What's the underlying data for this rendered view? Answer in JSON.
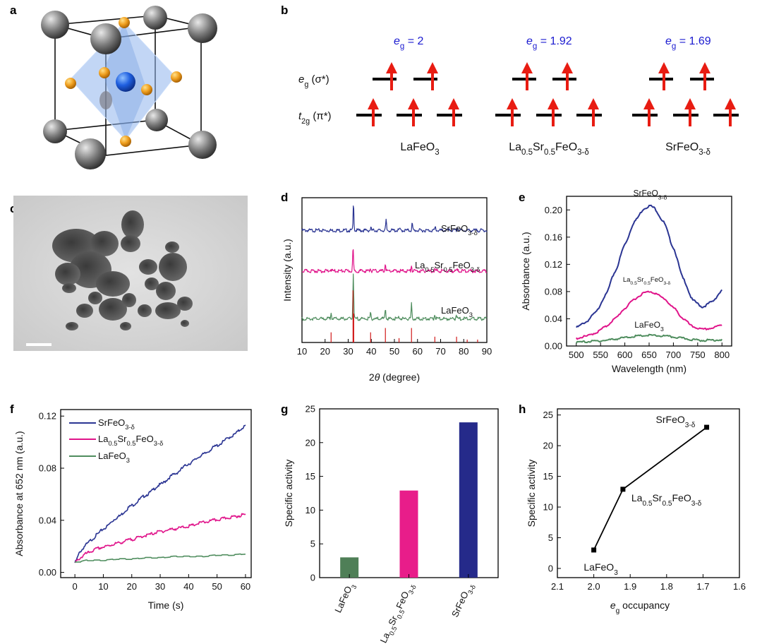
{
  "colors": {
    "srfeo3": "#2b3593",
    "lasrfeo3": "#e0148a",
    "lafeo3": "#4f8d5e",
    "arrow": "#e81c12",
    "eg_label": "#1a1ad0",
    "xrd_ref": "#d11a1a",
    "bar_lafeo3": "#4f7f57",
    "bar_lasrfeo3": "#e81d8a",
    "bar_srfeo3": "#252a8a"
  },
  "panel_labels": {
    "a": "a",
    "b": "b",
    "c": "c",
    "d": "d",
    "e": "e",
    "f": "f",
    "g": "g",
    "h": "h"
  },
  "panel_a": {
    "description_icon": "perovskite-unit-cell-icon"
  },
  "panel_b": {
    "eg_row_label": "e",
    "eg_row_sub": "g",
    "eg_row_tail": " (σ*)",
    "t2g_row_label": "t",
    "t2g_row_sub": "2g",
    "t2g_row_tail": " (π*)",
    "columns": [
      {
        "eg_e": "e",
        "eg_sub": "g",
        "eg_value": " = 2",
        "compound_parts": [
          [
            "LaFeO",
            "n"
          ],
          [
            "3",
            "sub"
          ]
        ]
      },
      {
        "eg_e": "e",
        "eg_sub": "g",
        "eg_value": " = 1.92",
        "compound_parts": [
          [
            "La",
            "n"
          ],
          [
            "0.5",
            "sub"
          ],
          [
            "Sr",
            "n"
          ],
          [
            "0.5",
            "sub"
          ],
          [
            "FeO",
            "n"
          ],
          [
            "3-δ",
            "sub"
          ]
        ]
      },
      {
        "eg_e": "e",
        "eg_sub": "g",
        "eg_value": " = 1.69",
        "compound_parts": [
          [
            "SrFeO",
            "n"
          ],
          [
            "3-δ",
            "sub"
          ]
        ]
      }
    ]
  },
  "panel_c": {
    "scale_bar_icon": "scale-bar-icon"
  },
  "chart_data": [
    {
      "panel": "d",
      "type": "line",
      "xlabel_prefix": "2",
      "xlabel_theta": "θ",
      "xlabel_suffix": " (degree)",
      "ylabel": "Intensity (a.u.)",
      "xlim": [
        10,
        90
      ],
      "xticks": [
        "10",
        "20",
        "30",
        "40",
        "50",
        "60",
        "70",
        "80",
        "90"
      ],
      "series": [
        {
          "name_parts": [
            [
              "SrFeO",
              "n"
            ],
            [
              "3-δ",
              "sub"
            ]
          ],
          "baseline": 0.78,
          "peaks": [
            [
              32.3,
              0.19
            ],
            [
              39.8,
              0.018
            ],
            [
              46.4,
              0.07
            ],
            [
              52.2,
              0.012
            ],
            [
              57.7,
              0.05
            ],
            [
              67.7,
              0.025
            ],
            [
              77.3,
              0.018
            ]
          ]
        },
        {
          "name_parts": [
            [
              "La",
              "n"
            ],
            [
              "0.5",
              "sub"
            ],
            [
              "Sr",
              "n"
            ],
            [
              "0.5",
              "sub"
            ],
            [
              "FeO",
              "n"
            ],
            [
              "3-δ",
              "sub"
            ]
          ],
          "baseline": 0.5,
          "peaks": [
            [
              22.4,
              0.015
            ],
            [
              32.1,
              0.16
            ],
            [
              39.6,
              0.02
            ],
            [
              46.1,
              0.05
            ],
            [
              57.4,
              0.04
            ],
            [
              67.5,
              0.015
            ],
            [
              77.0,
              0.01
            ]
          ]
        },
        {
          "name_parts": [
            [
              "LaFeO",
              "n"
            ],
            [
              "3",
              "sub"
            ]
          ],
          "baseline": 0.17,
          "peaks": [
            [
              22.6,
              0.05
            ],
            [
              32.2,
              0.31
            ],
            [
              39.7,
              0.04
            ],
            [
              46.1,
              0.08
            ],
            [
              52.0,
              0.02
            ],
            [
              57.4,
              0.1
            ],
            [
              67.4,
              0.035
            ],
            [
              76.8,
              0.03
            ]
          ]
        }
      ],
      "reference_peaks": [
        [
          22.6,
          0.07
        ],
        [
          32.1,
          0.36
        ],
        [
          32.4,
          0.2
        ],
        [
          39.7,
          0.07
        ],
        [
          46.1,
          0.1
        ],
        [
          52.0,
          0.03
        ],
        [
          57.4,
          0.1
        ],
        [
          67.5,
          0.04
        ],
        [
          76.9,
          0.04
        ],
        [
          81.5,
          0.02
        ],
        [
          86.0,
          0.02
        ]
      ]
    },
    {
      "panel": "e",
      "type": "line",
      "xlabel": "Wavelength (nm)",
      "ylabel": "Absorbance (a.u.)",
      "xlim": [
        480,
        820
      ],
      "ylim": [
        0,
        0.22
      ],
      "xticks": [
        "500",
        "550",
        "600",
        "650",
        "700",
        "750",
        "800"
      ],
      "yticks": [
        "0.00",
        "0.04",
        "0.08",
        "0.12",
        "0.16",
        "0.20"
      ],
      "x": [
        500,
        520,
        540,
        560,
        580,
        600,
        620,
        640,
        652,
        660,
        680,
        700,
        720,
        740,
        760,
        780,
        800
      ],
      "series": [
        {
          "name_parts": [
            [
              "SrFeO",
              "n"
            ],
            [
              "3-δ",
              "sub"
            ]
          ],
          "values": [
            0.028,
            0.036,
            0.05,
            0.075,
            0.11,
            0.15,
            0.184,
            0.203,
            0.207,
            0.204,
            0.183,
            0.145,
            0.1,
            0.068,
            0.058,
            0.066,
            0.082
          ]
        },
        {
          "name_parts": [
            [
              "La",
              "n"
            ],
            [
              "0.5",
              "sub"
            ],
            [
              "Sr",
              "n"
            ],
            [
              "0.5",
              "sub"
            ],
            [
              "FeO",
              "n"
            ],
            [
              "3-δ",
              "sub"
            ]
          ],
          "values": [
            0.012,
            0.015,
            0.02,
            0.029,
            0.041,
            0.056,
            0.07,
            0.079,
            0.081,
            0.079,
            0.071,
            0.057,
            0.041,
            0.029,
            0.025,
            0.027,
            0.032
          ]
        },
        {
          "name_parts": [
            [
              "LaFeO",
              "n"
            ],
            [
              "3",
              "sub"
            ]
          ],
          "values": [
            0.006,
            0.007,
            0.008,
            0.009,
            0.011,
            0.013,
            0.015,
            0.016,
            0.0165,
            0.016,
            0.0155,
            0.014,
            0.012,
            0.01,
            0.009,
            0.0095,
            0.01
          ]
        }
      ]
    },
    {
      "panel": "f",
      "type": "line",
      "xlabel": "Time (s)",
      "ylabel": "Absorbance at 652 nm (a.u.)",
      "xlim": [
        -5,
        62
      ],
      "ylim": [
        -0.004,
        0.125
      ],
      "xticks": [
        "0",
        "10",
        "20",
        "30",
        "40",
        "50",
        "60"
      ],
      "yticks": [
        "0.00",
        "0.04",
        "0.08",
        "0.12"
      ],
      "legend": "top-left",
      "x": [
        0,
        2,
        4,
        6,
        8,
        10,
        15,
        20,
        25,
        30,
        35,
        40,
        45,
        50,
        55,
        60
      ],
      "series": [
        {
          "name_parts": [
            [
              "SrFeO",
              "n"
            ],
            [
              "3-δ",
              "sub"
            ]
          ],
          "values": [
            0.008,
            0.017,
            0.022,
            0.026,
            0.03,
            0.034,
            0.043,
            0.052,
            0.06,
            0.068,
            0.076,
            0.084,
            0.091,
            0.098,
            0.105,
            0.113
          ]
        },
        {
          "name_parts": [
            [
              "La",
              "n"
            ],
            [
              "0.5",
              "sub"
            ],
            [
              "Sr",
              "n"
            ],
            [
              "0.5",
              "sub"
            ],
            [
              "FeO",
              "n"
            ],
            [
              "3-δ",
              "sub"
            ]
          ],
          "values": [
            0.008,
            0.012,
            0.015,
            0.017,
            0.019,
            0.02,
            0.023,
            0.026,
            0.029,
            0.032,
            0.034,
            0.036,
            0.039,
            0.041,
            0.043,
            0.045
          ]
        },
        {
          "name_parts": [
            [
              "LaFeO",
              "n"
            ],
            [
              "3",
              "sub"
            ]
          ],
          "values": [
            0.008,
            0.008,
            0.009,
            0.009,
            0.009,
            0.009,
            0.01,
            0.01,
            0.011,
            0.011,
            0.012,
            0.012,
            0.012,
            0.013,
            0.013,
            0.014
          ]
        }
      ]
    },
    {
      "panel": "g",
      "type": "bar",
      "ylabel": "Specific activity",
      "ylim": [
        0,
        25
      ],
      "yticks": [
        "0",
        "5",
        "10",
        "15",
        "20",
        "25"
      ],
      "categories": [
        [
          [
            "LaFeO",
            "n"
          ],
          [
            "3",
            "sub"
          ]
        ],
        [
          [
            "La",
            "n"
          ],
          [
            "0.5",
            "sub"
          ],
          [
            "Sr",
            "n"
          ],
          [
            "0.5",
            "sub"
          ],
          [
            "FeO",
            "n"
          ],
          [
            "3-δ",
            "sub"
          ]
        ],
        [
          [
            "SrFeO",
            "n"
          ],
          [
            "3-δ",
            "sub"
          ]
        ]
      ],
      "values": [
        3.0,
        12.9,
        23.0
      ]
    },
    {
      "panel": "h",
      "type": "scatter",
      "xlabel_e": "e",
      "xlabel_sub": "g",
      "xlabel_tail": " occupancy",
      "ylabel": "Specific activity",
      "xlim": [
        2.1,
        1.6
      ],
      "ylim": [
        -1.5,
        26
      ],
      "xticks": [
        "2.1",
        "2.0",
        "1.9",
        "1.8",
        "1.7",
        "1.6"
      ],
      "yticks": [
        "0",
        "5",
        "10",
        "15",
        "20",
        "25"
      ],
      "points": [
        {
          "x": 2.0,
          "y": 3.0,
          "label_parts": [
            [
              "LaFeO",
              "n"
            ],
            [
              "3",
              "sub"
            ]
          ]
        },
        {
          "x": 1.92,
          "y": 12.9,
          "label_parts": [
            [
              "La",
              "n"
            ],
            [
              "0.5",
              "sub"
            ],
            [
              "Sr",
              "n"
            ],
            [
              "0.5",
              "sub"
            ],
            [
              "FeO",
              "n"
            ],
            [
              "3-δ",
              "sub"
            ]
          ]
        },
        {
          "x": 1.69,
          "y": 23.0,
          "label_parts": [
            [
              "SrFeO",
              "n"
            ],
            [
              "3-δ",
              "sub"
            ]
          ]
        }
      ]
    }
  ]
}
